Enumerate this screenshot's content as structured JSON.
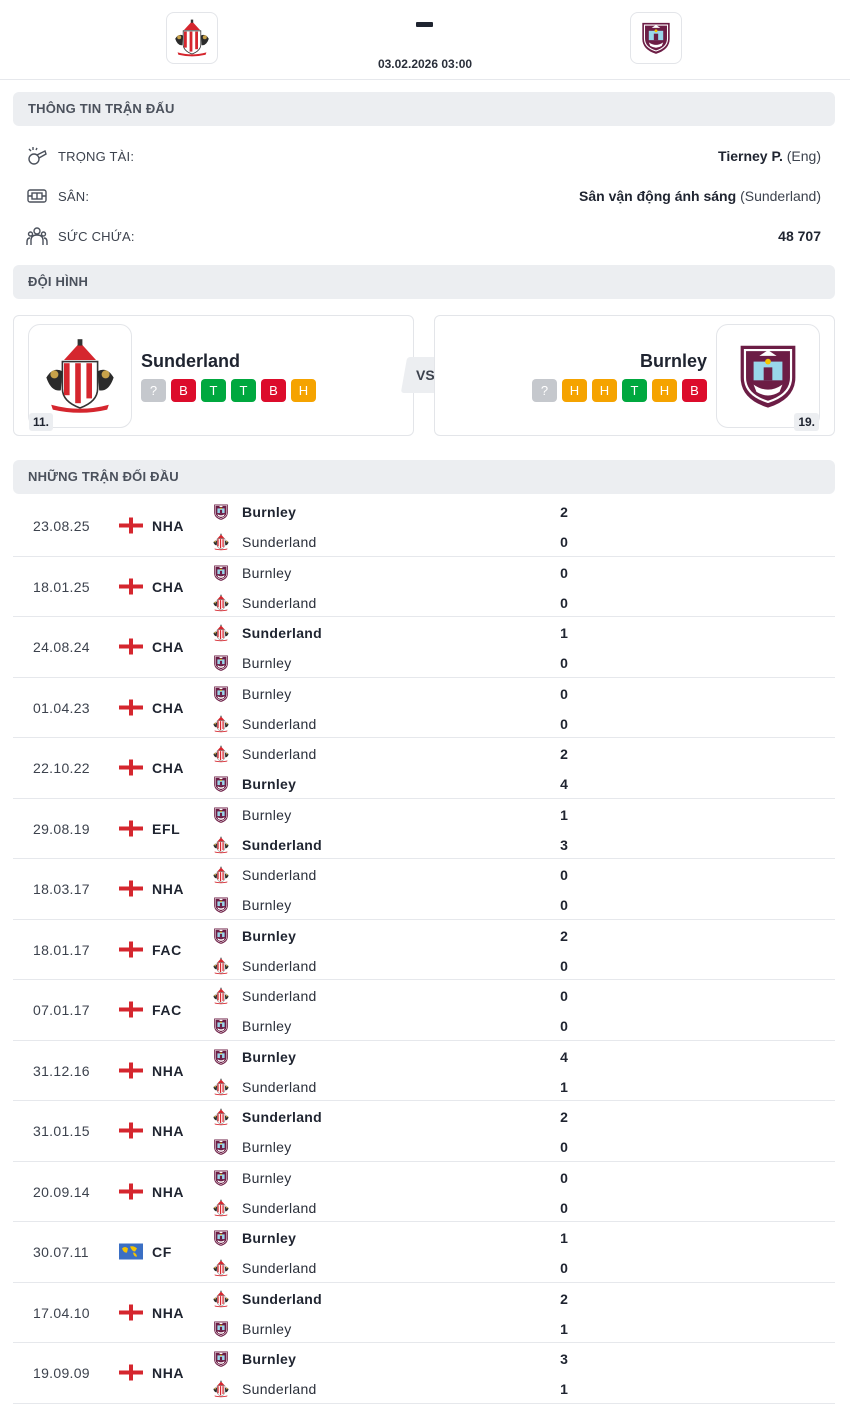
{
  "header": {
    "home_team": "Sunderland",
    "away_team": "Burnley",
    "date_time": "03.02.2026 03:00"
  },
  "match_info": {
    "title": "THÔNG TIN TRẬN ĐẤU",
    "referee": {
      "label": "TRỌNG TÀI:",
      "name": "Tierney P.",
      "extra": "(Eng)",
      "icon": "whistle-icon"
    },
    "venue": {
      "label": "SÂN:",
      "name": "Sân vận động ánh sáng",
      "extra": "(Sunderland)",
      "icon": "stadium-icon"
    },
    "capacity": {
      "label": "SỨC CHỨA:",
      "value": "48 707",
      "icon": "crowd-icon"
    }
  },
  "lineups": {
    "title": "ĐỘI HÌNH",
    "vs": "VS",
    "home": {
      "name": "Sunderland",
      "rank": "11.",
      "form": [
        "?",
        "B",
        "T",
        "T",
        "B",
        "H"
      ]
    },
    "away": {
      "name": "Burnley",
      "rank": "19.",
      "form": [
        "?",
        "H",
        "H",
        "T",
        "H",
        "B"
      ]
    }
  },
  "form_colors": {
    "?": "#c5c8cd",
    "B": "#dc0c2b",
    "T": "#00a83f",
    "H": "#f5a300"
  },
  "colors": {
    "sunderland_red": "#d5262e",
    "burnley_claret": "#6c1d45",
    "burnley_blue": "#99d6ea"
  },
  "h2h": {
    "title": "NHỮNG TRẬN ĐỐI ĐẦU",
    "matches": [
      {
        "date": "23.08.25",
        "flag": "england",
        "comp": "NHA",
        "t1": "Burnley",
        "t2": "Sunderland",
        "s1": "2",
        "s2": "0",
        "winner": 1
      },
      {
        "date": "18.01.25",
        "flag": "england",
        "comp": "CHA",
        "t1": "Burnley",
        "t2": "Sunderland",
        "s1": "0",
        "s2": "0",
        "winner": 0
      },
      {
        "date": "24.08.24",
        "flag": "england",
        "comp": "CHA",
        "t1": "Sunderland",
        "t2": "Burnley",
        "s1": "1",
        "s2": "0",
        "winner": 1
      },
      {
        "date": "01.04.23",
        "flag": "england",
        "comp": "CHA",
        "t1": "Burnley",
        "t2": "Sunderland",
        "s1": "0",
        "s2": "0",
        "winner": 0
      },
      {
        "date": "22.10.22",
        "flag": "england",
        "comp": "CHA",
        "t1": "Sunderland",
        "t2": "Burnley",
        "s1": "2",
        "s2": "4",
        "winner": 2
      },
      {
        "date": "29.08.19",
        "flag": "england",
        "comp": "EFL",
        "t1": "Burnley",
        "t2": "Sunderland",
        "s1": "1",
        "s2": "3",
        "winner": 2
      },
      {
        "date": "18.03.17",
        "flag": "england",
        "comp": "NHA",
        "t1": "Sunderland",
        "t2": "Burnley",
        "s1": "0",
        "s2": "0",
        "winner": 0
      },
      {
        "date": "18.01.17",
        "flag": "england",
        "comp": "FAC",
        "t1": "Burnley",
        "t2": "Sunderland",
        "s1": "2",
        "s2": "0",
        "winner": 1
      },
      {
        "date": "07.01.17",
        "flag": "england",
        "comp": "FAC",
        "t1": "Sunderland",
        "t2": "Burnley",
        "s1": "0",
        "s2": "0",
        "winner": 0
      },
      {
        "date": "31.12.16",
        "flag": "england",
        "comp": "NHA",
        "t1": "Burnley",
        "t2": "Sunderland",
        "s1": "4",
        "s2": "1",
        "winner": 1
      },
      {
        "date": "31.01.15",
        "flag": "england",
        "comp": "NHA",
        "t1": "Sunderland",
        "t2": "Burnley",
        "s1": "2",
        "s2": "0",
        "winner": 1
      },
      {
        "date": "20.09.14",
        "flag": "england",
        "comp": "NHA",
        "t1": "Burnley",
        "t2": "Sunderland",
        "s1": "0",
        "s2": "0",
        "winner": 0
      },
      {
        "date": "30.07.11",
        "flag": "world",
        "comp": "CF",
        "t1": "Burnley",
        "t2": "Sunderland",
        "s1": "1",
        "s2": "0",
        "winner": 1
      },
      {
        "date": "17.04.10",
        "flag": "england",
        "comp": "NHA",
        "t1": "Sunderland",
        "t2": "Burnley",
        "s1": "2",
        "s2": "1",
        "winner": 1
      },
      {
        "date": "19.09.09",
        "flag": "england",
        "comp": "NHA",
        "t1": "Burnley",
        "t2": "Sunderland",
        "s1": "3",
        "s2": "1",
        "winner": 1
      }
    ]
  }
}
